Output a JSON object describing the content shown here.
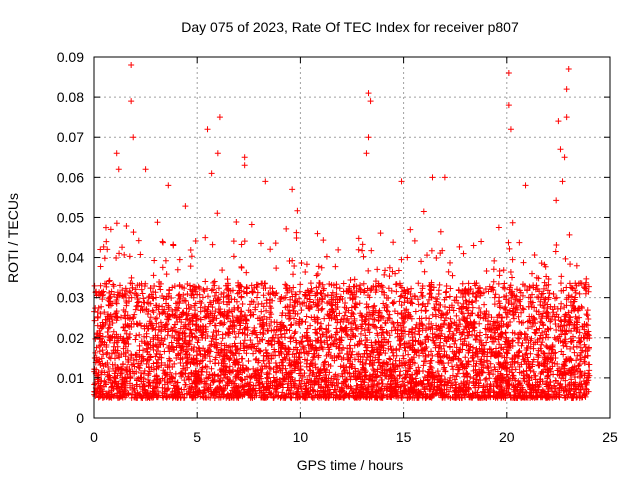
{
  "chart_data": {
    "type": "scatter",
    "title": "Day 075 of 2023, Rate Of TEC Index for receiver p807",
    "xlabel": "GPS time / hours",
    "ylabel": "ROTI / TECUs",
    "xlim": [
      0,
      25
    ],
    "ylim": [
      0,
      0.09
    ],
    "xticks": [
      "0",
      "5",
      "10",
      "15",
      "20",
      "25"
    ],
    "yticks": [
      "0",
      "0.01",
      "0.02",
      "0.03",
      "0.04",
      "0.05",
      "0.06",
      "0.07",
      "0.08",
      "0.09"
    ],
    "grid": true,
    "marker": "plus",
    "color": "#ff0000",
    "x_coverage_hours": [
      0,
      24
    ],
    "typical_range": [
      0.005,
      0.03
    ],
    "outliers": [
      {
        "x": 1.8,
        "y": 0.088
      },
      {
        "x": 1.8,
        "y": 0.079
      },
      {
        "x": 1.9,
        "y": 0.07
      },
      {
        "x": 1.1,
        "y": 0.066
      },
      {
        "x": 1.2,
        "y": 0.062
      },
      {
        "x": 2.5,
        "y": 0.062
      },
      {
        "x": 3.6,
        "y": 0.058
      },
      {
        "x": 5.5,
        "y": 0.072
      },
      {
        "x": 6.1,
        "y": 0.075
      },
      {
        "x": 6.0,
        "y": 0.066
      },
      {
        "x": 5.7,
        "y": 0.061
      },
      {
        "x": 7.3,
        "y": 0.065
      },
      {
        "x": 7.3,
        "y": 0.063
      },
      {
        "x": 8.3,
        "y": 0.059
      },
      {
        "x": 9.6,
        "y": 0.057
      },
      {
        "x": 13.3,
        "y": 0.081
      },
      {
        "x": 13.4,
        "y": 0.079
      },
      {
        "x": 13.3,
        "y": 0.07
      },
      {
        "x": 13.2,
        "y": 0.066
      },
      {
        "x": 14.9,
        "y": 0.059
      },
      {
        "x": 16.4,
        "y": 0.06
      },
      {
        "x": 17.0,
        "y": 0.06
      },
      {
        "x": 20.1,
        "y": 0.086
      },
      {
        "x": 20.1,
        "y": 0.078
      },
      {
        "x": 20.2,
        "y": 0.072
      },
      {
        "x": 22.5,
        "y": 0.074
      },
      {
        "x": 22.9,
        "y": 0.075
      },
      {
        "x": 23.0,
        "y": 0.087
      },
      {
        "x": 22.9,
        "y": 0.082
      },
      {
        "x": 22.6,
        "y": 0.067
      },
      {
        "x": 22.8,
        "y": 0.065
      },
      {
        "x": 22.7,
        "y": 0.059
      }
    ]
  }
}
